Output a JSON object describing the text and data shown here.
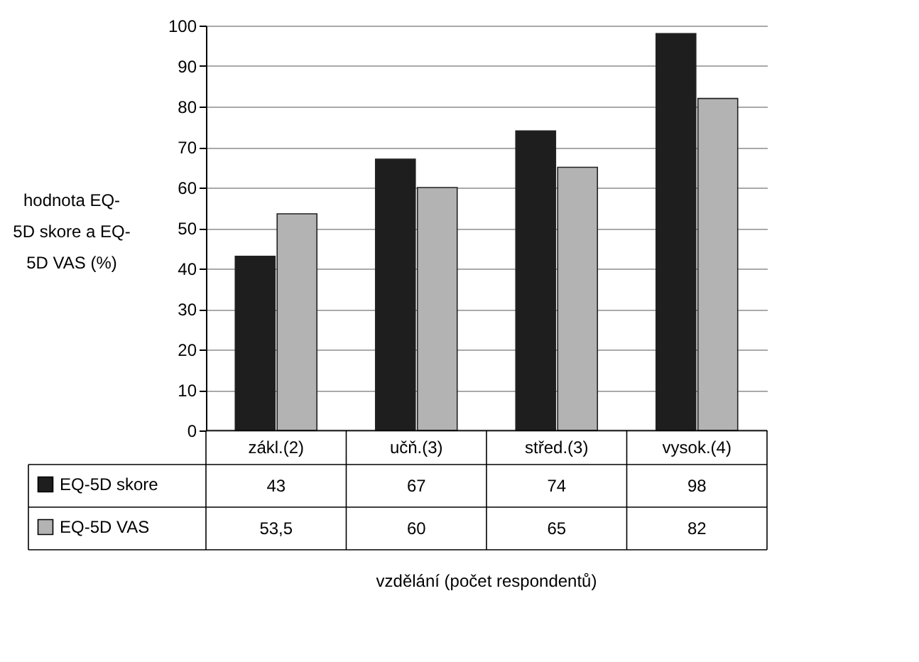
{
  "chart_data": {
    "type": "bar",
    "categories": [
      "zákl.(2)",
      "učň.(3)",
      "střed.(3)",
      "vysok.(4)"
    ],
    "series": [
      {
        "name": "EQ-5D skore",
        "color": "#1e1e1e",
        "values": [
          43,
          67,
          74,
          98
        ],
        "value_labels": [
          "43",
          "67",
          "74",
          "98"
        ]
      },
      {
        "name": "EQ-5D VAS",
        "color": "#b3b3b3",
        "values": [
          53.5,
          60,
          65,
          82
        ],
        "value_labels": [
          "53,5",
          "60",
          "65",
          "82"
        ]
      }
    ],
    "ylabel": "hodnota EQ-5D skore a EQ-5D VAS (%)",
    "annotations": [
      "vzdělání (počet respondentů)"
    ],
    "ylim": [
      0,
      100
    ],
    "yticks": [
      0,
      10,
      20,
      30,
      40,
      50,
      60,
      70,
      80,
      90,
      100
    ],
    "grid": "y",
    "legend": "bottom left"
  }
}
